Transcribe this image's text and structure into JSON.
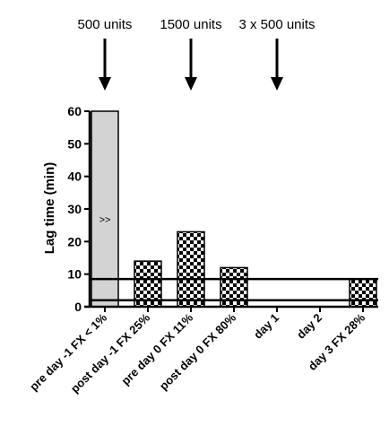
{
  "chart_data": {
    "type": "bar",
    "title": "",
    "xlabel": "",
    "ylabel": "Lag time (min)",
    "ylim": [
      0,
      60
    ],
    "yticks": [
      0,
      10,
      20,
      30,
      40,
      50,
      60
    ],
    "grid": false,
    "categories": [
      "pre day -1 FX < 1%",
      "post day -1 FX 25%",
      "pre day 0 FX 11%",
      "post day 0 FX 80%",
      "day 1",
      "day 2",
      "day 3 FX 28%"
    ],
    "values": [
      60,
      14,
      23,
      12,
      null,
      null,
      8.5
    ],
    "bar_styles": [
      "solid-gray",
      "checkered",
      "checkered",
      "checkered",
      "none",
      "none",
      "checkered"
    ],
    "bar_annotations": [
      ">>",
      "",
      "",
      "",
      "",
      "",
      ""
    ],
    "reference_lines": [
      8.5,
      2
    ],
    "doses": [
      {
        "label": "500 units",
        "category_index": 0
      },
      {
        "label": "1500 units",
        "category_index": 2
      },
      {
        "label": "3 x 500 units",
        "category_index": 4
      }
    ],
    "colors": {
      "solid_bar": "#d3d3d3",
      "axis": "#000000",
      "check_dark": "#000000",
      "check_light": "#ffffff"
    }
  }
}
